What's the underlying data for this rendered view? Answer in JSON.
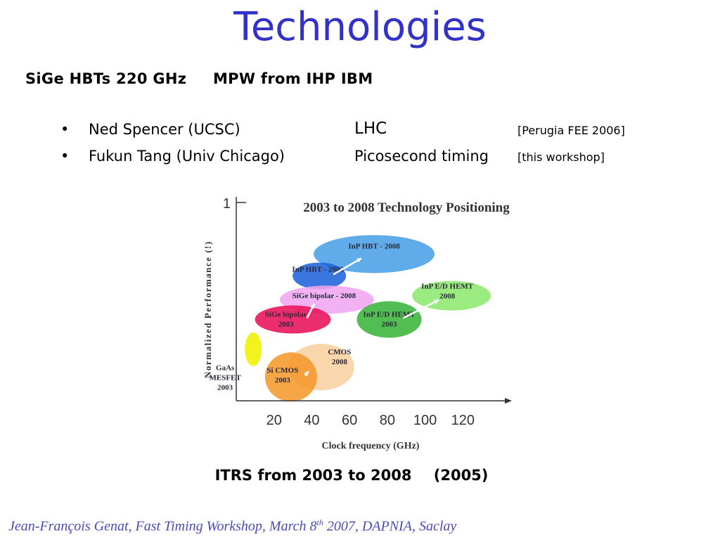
{
  "slide": {
    "title": "Technologies",
    "subtitle": {
      "part1": "SiGe HBTs 220 GHz",
      "part2": "MPW from IHP IBM"
    },
    "bullets": [
      {
        "marker": "•",
        "name": "Ned Spencer (UCSC)",
        "topic": "LHC",
        "ref": "[Perugia FEE 2006]"
      },
      {
        "marker": "•",
        "name": "Fukun Tang    (Univ Chicago)",
        "topic": "Picosecond timing",
        "ref": "[this workshop]"
      }
    ],
    "caption": {
      "part1": "ITRS from 2003 to 2008",
      "part2": "(2005)"
    },
    "footer": {
      "text1": "Jean-François  Genat,   Fast Timing Workshop, March 8",
      "sup": "th",
      "text2": " 2007, DAPNIA, Saclay"
    }
  },
  "chart_data": {
    "type": "scatter",
    "title": "2003 to 2008 Technology Positioning",
    "xlabel": "Clock frequency (GHz)",
    "ylabel": "Normalized Performance (!)",
    "x_ticks": [
      20,
      40,
      60,
      80,
      100,
      120
    ],
    "y_ticks": [
      "1"
    ],
    "xlim": [
      0,
      140
    ],
    "ylim": [
      0,
      1
    ],
    "grid": false,
    "regions": [
      {
        "label": "InP HBT - 2008",
        "x": 73,
        "y": 0.74,
        "color": "#4aa0e8"
      },
      {
        "label": "InP HBT - 2003",
        "x": 44,
        "y": 0.63,
        "color": "#1f63d8"
      },
      {
        "label": "SiGe bipolar - 2008",
        "x": 48,
        "y": 0.51,
        "color": "#f0a6f0"
      },
      {
        "label": "SiGe bipolar 2003",
        "x": 30,
        "y": 0.41,
        "color": "#e8105a"
      },
      {
        "label": "InP E/D HEMT 2008",
        "x": 114,
        "y": 0.53,
        "color": "#8ee86e"
      },
      {
        "label": "InP E/D HEMT 2003",
        "x": 81,
        "y": 0.41,
        "color": "#3ab43a"
      },
      {
        "label": "CMOS 2008",
        "x": 45,
        "y": 0.17,
        "color": "#f9d0a0"
      },
      {
        "label": "Si CMOS 2003",
        "x": 29,
        "y": 0.12,
        "color": "#f5992e"
      },
      {
        "label": "GaAs MESFET 2003",
        "x": 9,
        "y": 0.26,
        "color": "#f0f000"
      }
    ]
  }
}
